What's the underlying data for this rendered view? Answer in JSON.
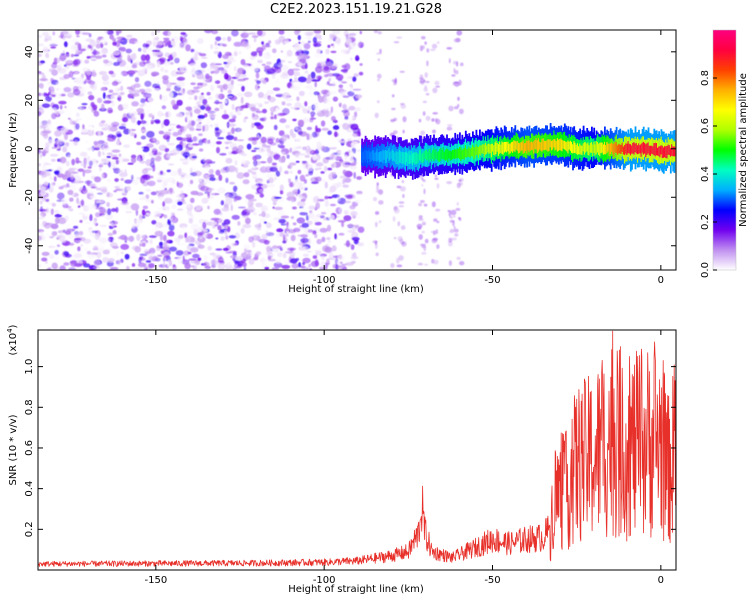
{
  "figure": {
    "title": "C2E2.2023.151.19.21.G28"
  },
  "chart_data": [
    {
      "type": "heatmap",
      "xlabel": "Height of straight line (km)",
      "ylabel": "Frequency (Hz)",
      "xlim": [
        -185,
        4.5
      ],
      "ylim": [
        -50,
        49
      ],
      "x_ticks": [
        -150,
        -100,
        -50,
        0
      ],
      "y_ticks": [
        -40,
        -20,
        0,
        20,
        40
      ],
      "colorbar": {
        "label": "Normalized spectral amplitude",
        "range": [
          0,
          1
        ],
        "ticks": [
          "0.0",
          "0.2",
          "0.4",
          "0.6",
          "0.8"
        ],
        "colormap": [
          "#ffffff",
          "#c090f0",
          "#7000f0",
          "#0000ff",
          "#00b0ff",
          "#00ffc0",
          "#00ff00",
          "#b0ff00",
          "#ffff00",
          "#ffb000",
          "#ff4000",
          "#ff0040",
          "#ff0080"
        ]
      },
      "regions": [
        {
          "name": "noise",
          "x_range": [
            -185,
            -89
          ],
          "freq_range": [
            -50,
            49
          ],
          "amplitude": 0.15
        },
        {
          "name": "signal",
          "x_range": [
            -89,
            4
          ],
          "center_freq": [
            [
              -89,
              -3
            ],
            [
              -80,
              -3
            ],
            [
              -75,
              -4
            ],
            [
              -70,
              -3
            ],
            [
              -60,
              -2
            ],
            [
              -50,
              0
            ],
            [
              -40,
              1
            ],
            [
              -32,
              2
            ],
            [
              -25,
              0
            ],
            [
              -15,
              0
            ],
            [
              -5,
              0
            ],
            [
              0,
              -1
            ],
            [
              3,
              -1
            ]
          ],
          "peak_amplitude": [
            [
              -88,
              0.3
            ],
            [
              -70,
              0.45
            ],
            [
              -55,
              0.55
            ],
            [
              -40,
              0.75
            ],
            [
              -30,
              0.7
            ],
            [
              -20,
              0.6
            ],
            [
              -10,
              0.9
            ],
            [
              0,
              0.9
            ]
          ]
        }
      ]
    },
    {
      "type": "line",
      "xlabel": "Height of straight line (km)",
      "ylabel": "SNR (10 * v/v)",
      "scale_label": "(x10",
      "scale_exp": "4",
      "xlim": [
        -185,
        4.5
      ],
      "ylim": [
        0,
        11800
      ],
      "x_ticks": [
        -150,
        -100,
        -50,
        0
      ],
      "y_ticks": [
        {
          "value": 2000,
          "label": "0.2"
        },
        {
          "value": 4000,
          "label": "0.4"
        },
        {
          "value": 6000,
          "label": "0.6"
        },
        {
          "value": 8000,
          "label": "0.8"
        },
        {
          "value": 10000,
          "label": "1.0"
        }
      ],
      "color": "#e8302a",
      "series": [
        {
          "values": [
            [
              -185,
              300
            ],
            [
              -150,
              320
            ],
            [
              -120,
              340
            ],
            [
              -100,
              380
            ],
            [
              -90,
              450
            ],
            [
              -80,
              700
            ],
            [
              -75,
              900
            ],
            [
              -72,
              1800
            ],
            [
              -71,
              3200
            ],
            [
              -70,
              1800
            ],
            [
              -68,
              900
            ],
            [
              -62,
              600
            ],
            [
              -55,
              1100
            ],
            [
              -50,
              1500
            ],
            [
              -45,
              1300
            ],
            [
              -40,
              1500
            ],
            [
              -35,
              1600
            ],
            [
              -33,
              2000
            ],
            [
              -32,
              5500
            ],
            [
              -28,
              6000
            ],
            [
              -25,
              8000
            ],
            [
              -20,
              8500
            ],
            [
              -15,
              10200
            ],
            [
              -10,
              9200
            ],
            [
              -5,
              9500
            ],
            [
              -2,
              10000
            ],
            [
              0,
              9800
            ],
            [
              2,
              7500
            ],
            [
              4,
              8700
            ]
          ]
        }
      ]
    }
  ]
}
